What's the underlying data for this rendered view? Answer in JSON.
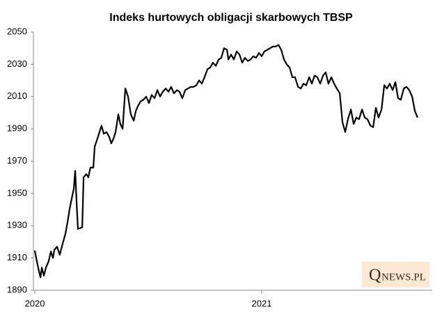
{
  "chart_data": {
    "type": "line",
    "title": "Indeks hurtowych obligacji skarbowych TBSP",
    "watermark": [
      "Q",
      "NEWS.PL"
    ],
    "color": "#000000",
    "xlim": [
      2020,
      2021.75
    ],
    "xticks": [
      2020,
      2021
    ],
    "ylim": [
      1890,
      2050
    ],
    "yticks": [
      1890,
      1910,
      1930,
      1950,
      1970,
      1990,
      2010,
      2030,
      2050
    ],
    "x": [
      2020.0,
      2020.006,
      2020.018,
      2020.025,
      2020.031,
      2020.04,
      2020.049,
      2020.061,
      2020.071,
      2020.08,
      2020.086,
      2020.098,
      2020.11,
      2020.123,
      2020.135,
      2020.144,
      2020.153,
      2020.163,
      2020.172,
      2020.178,
      2020.184,
      2020.19,
      2020.209,
      2020.215,
      2020.227,
      2020.236,
      2020.245,
      2020.258,
      2020.264,
      2020.276,
      2020.285,
      2020.294,
      2020.304,
      2020.316,
      2020.328,
      2020.337,
      2020.347,
      2020.356,
      2020.368,
      2020.377,
      2020.387,
      2020.399,
      2020.411,
      2020.423,
      2020.436,
      2020.445,
      2020.454,
      2020.466,
      2020.479,
      2020.491,
      2020.503,
      2020.515,
      2020.528,
      2020.54,
      2020.552,
      2020.564,
      2020.577,
      2020.589,
      2020.601,
      2020.613,
      2020.626,
      2020.638,
      2020.65,
      2020.663,
      2020.675,
      2020.687,
      2020.699,
      2020.712,
      2020.724,
      2020.736,
      2020.748,
      2020.761,
      2020.773,
      2020.785,
      2020.798,
      2020.81,
      2020.822,
      2020.834,
      2020.847,
      2020.853,
      2020.865,
      2020.877,
      2020.89,
      2020.902,
      2020.914,
      2020.926,
      2020.939,
      2020.951,
      2020.963,
      2020.975,
      2020.988,
      2021.0,
      2021.012,
      2021.025,
      2021.037,
      2021.049,
      2021.061,
      2021.074,
      2021.086,
      2021.098,
      2021.11,
      2021.123,
      2021.135,
      2021.147,
      2021.16,
      2021.172,
      2021.184,
      2021.196,
      2021.209,
      2021.221,
      2021.233,
      2021.245,
      2021.258,
      2021.27,
      2021.282,
      2021.294,
      2021.307,
      2021.319,
      2021.331,
      2021.344,
      2021.356,
      2021.368,
      2021.38,
      2021.393,
      2021.405,
      2021.417,
      2021.429,
      2021.442,
      2021.454,
      2021.466,
      2021.479,
      2021.491,
      2021.503,
      2021.515,
      2021.528,
      2021.54,
      2021.552,
      2021.564,
      2021.577,
      2021.589,
      2021.601,
      2021.613,
      2021.626,
      2021.638,
      2021.65,
      2021.663,
      2021.675,
      2021.687
    ],
    "values": [
      1914.6,
      1910,
      1902,
      1898,
      1904,
      1899,
      1904,
      1908,
      1914,
      1910,
      1915,
      1917,
      1912,
      1919,
      1925,
      1932,
      1940,
      1947,
      1953,
      1964,
      1945,
      1928,
      1929,
      1960,
      1962,
      1960,
      1966,
      1966,
      1979,
      1984,
      1988,
      1992,
      1987,
      1988,
      1985,
      1981,
      1984,
      1988,
      1999,
      1993,
      1990,
      2015,
      2010,
      1999,
      1995,
      2001,
      2004,
      2007,
      2008,
      2010,
      2006,
      2011,
      2009,
      2014,
      2010,
      2013,
      2015,
      2013,
      2016,
      2012,
      2014,
      2013,
      2009,
      2014,
      2015,
      2016,
      2016,
      2017,
      2020,
      2018,
      2022,
      2027,
      2028,
      2031,
      2029,
      2033,
      2034,
      2040,
      2039,
      2033,
      2036,
      2033,
      2038,
      2036,
      2031,
      2034,
      2032,
      2033,
      2035,
      2034,
      2037,
      2035,
      2038,
      2039,
      2040,
      2041,
      2041,
      2042,
      2039,
      2033,
      2030,
      2028,
      2022,
      2022,
      2016,
      2015,
      2018,
      2017,
      2022,
      2018,
      2023,
      2022,
      2018,
      2023,
      2025,
      2018,
      2022,
      2018,
      2015,
      2012,
      1994,
      1988,
      1996,
      2002,
      1993,
      1997,
      1996,
      2002,
      1997,
      1996,
      1992,
      1991,
      2003,
      1997,
      2002,
      2017,
      2015,
      2018,
      2014,
      2019,
      2009,
      2008,
      2015,
      2016,
      2014,
      2010,
      2001,
      1997
    ]
  }
}
